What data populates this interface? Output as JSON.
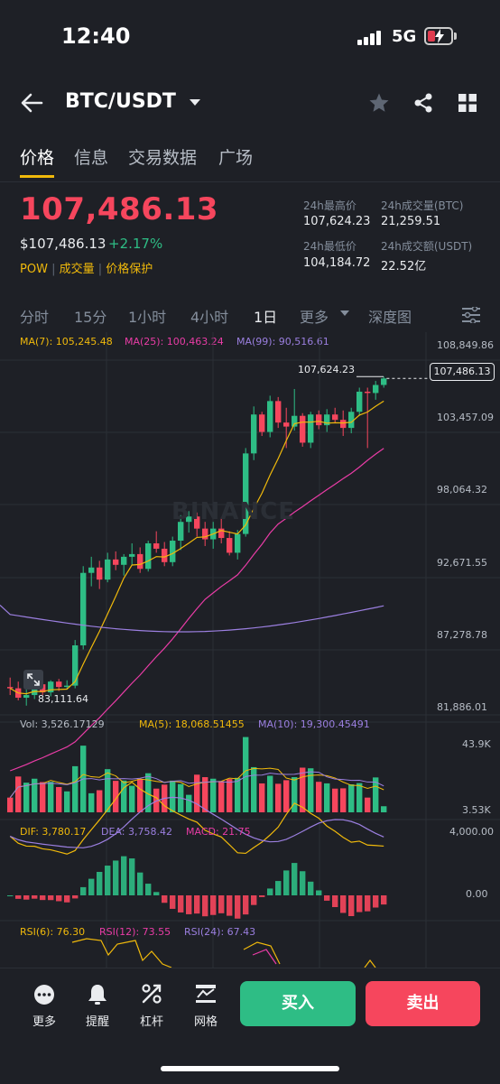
{
  "status": {
    "time": "12:40",
    "network": "5G"
  },
  "header": {
    "pair": "BTC/USDT"
  },
  "tabs": [
    {
      "label": "价格",
      "active": true
    },
    {
      "label": "信息",
      "active": false
    },
    {
      "label": "交易数据",
      "active": false
    },
    {
      "label": "广场",
      "active": false
    }
  ],
  "price": {
    "last": "107,486.13",
    "usd": "$107,486.13",
    "change": "+2.17%",
    "tags": [
      "POW",
      "成交量",
      "价格保护"
    ]
  },
  "stats": {
    "high_label": "24h最高价",
    "high": "107,624.23",
    "low_label": "24h最低价",
    "low": "104,184.72",
    "vol_btc_label": "24h成交量(BTC)",
    "vol_btc": "21,259.51",
    "vol_usdt_label": "24h成交额(USDT)",
    "vol_usdt": "22.52亿"
  },
  "timeframes": {
    "t1": "分时",
    "t2": "15分",
    "t3": "1小时",
    "t4": "4小时",
    "t5": "1日",
    "more": "更多",
    "depth": "深度图"
  },
  "colors": {
    "up": "#2ebd85",
    "down": "#f6465d",
    "ma7": "#f0b90b",
    "ma25": "#e93ca6",
    "ma99": "#9b7fe0",
    "accent": "#f0b90b"
  },
  "chart_data": {
    "type": "candlestick",
    "ma": {
      "ma7": "MA(7): 105,245.48",
      "ma25": "MA(25): 100,463.24",
      "ma99": "MA(99): 90,516.61"
    },
    "y_ticks": [
      "108,849.86",
      "103,457.09",
      "98,064.32",
      "92,671.55",
      "87,278.78",
      "81,886.01"
    ],
    "high_marker": "107,624.23",
    "low_marker": "83,111.64",
    "current_price": "107,486.13",
    "ylim": [
      81886.01,
      108849.86
    ],
    "candles": [
      [
        84500,
        85200,
        83900,
        84400
      ],
      [
        84400,
        84900,
        83500,
        83700
      ],
      [
        83700,
        84300,
        83111,
        83900
      ],
      [
        83900,
        84800,
        83600,
        84700
      ],
      [
        84700,
        85200,
        83900,
        84100
      ],
      [
        84100,
        85000,
        83800,
        84900
      ],
      [
        84900,
        85100,
        84200,
        84500
      ],
      [
        84500,
        85000,
        84300,
        84600
      ],
      [
        84600,
        88000,
        84400,
        87600
      ],
      [
        87600,
        93500,
        87300,
        93000
      ],
      [
        93000,
        94200,
        92000,
        93400
      ],
      [
        93400,
        93900,
        91800,
        92500
      ],
      [
        92500,
        94500,
        92300,
        94000
      ],
      [
        94000,
        94600,
        93200,
        93600
      ],
      [
        93600,
        94400,
        92800,
        94200
      ],
      [
        94200,
        95200,
        93600,
        94400
      ],
      [
        94400,
        94900,
        93000,
        93300
      ],
      [
        93300,
        95400,
        93100,
        95200
      ],
      [
        95200,
        96100,
        94500,
        94800
      ],
      [
        94800,
        95300,
        93500,
        93800
      ],
      [
        93800,
        95700,
        93500,
        95400
      ],
      [
        95400,
        97300,
        94700,
        96800
      ],
      [
        96800,
        97600,
        96000,
        97200
      ],
      [
        97200,
        97500,
        95700,
        96300
      ],
      [
        96300,
        96800,
        95000,
        95500
      ],
      [
        95500,
        96800,
        94800,
        96300
      ],
      [
        96300,
        97100,
        95200,
        95600
      ],
      [
        95600,
        96100,
        94300,
        94500
      ],
      [
        94500,
        96200,
        94000,
        95900
      ],
      [
        95900,
        102300,
        95700,
        101900
      ],
      [
        101900,
        105400,
        101400,
        104800
      ],
      [
        104800,
        105000,
        103200,
        103500
      ],
      [
        103500,
        106200,
        103100,
        105800
      ],
      [
        105800,
        106100,
        103800,
        104200
      ],
      [
        104200,
        105300,
        102300,
        103900
      ],
      [
        103900,
        106700,
        103600,
        104700
      ],
      [
        104700,
        104900,
        102400,
        102700
      ],
      [
        102700,
        105000,
        102300,
        104800
      ],
      [
        104800,
        105100,
        103700,
        104000
      ],
      [
        104000,
        105200,
        103500,
        104800
      ],
      [
        104800,
        105300,
        104200,
        104400
      ],
      [
        104400,
        105100,
        103200,
        103800
      ],
      [
        103800,
        105300,
        103400,
        105000
      ],
      [
        105000,
        106800,
        104700,
        106500
      ],
      [
        106500,
        106800,
        102300,
        106400
      ],
      [
        106400,
        107300,
        105900,
        107000
      ],
      [
        107000,
        107624,
        106800,
        107486
      ]
    ],
    "volume": {
      "label": "Vol: 3,526.17129",
      "ma5": "MA(5): 18,068.51455",
      "ma10": "MA(10): 19,300.45491",
      "max_label": "43.9K",
      "min_label": "3.53K"
    },
    "macd": {
      "dif": "DIF: 3,780.17",
      "dea": "DEA: 3,758.42",
      "macd": "MACD: 21.75",
      "top_label": "4,000.00",
      "zero_label": "0.00"
    },
    "rsi": {
      "rsi6": "RSI(6): 76.30",
      "rsi12": "RSI(12): 73.55",
      "rsi24": "RSI(24): 67.43"
    },
    "watermark": "BINANCE"
  },
  "bottom": {
    "more": "更多",
    "alert": "提醒",
    "leverage": "杠杆",
    "grid": "网格",
    "buy": "买入",
    "sell": "卖出"
  }
}
